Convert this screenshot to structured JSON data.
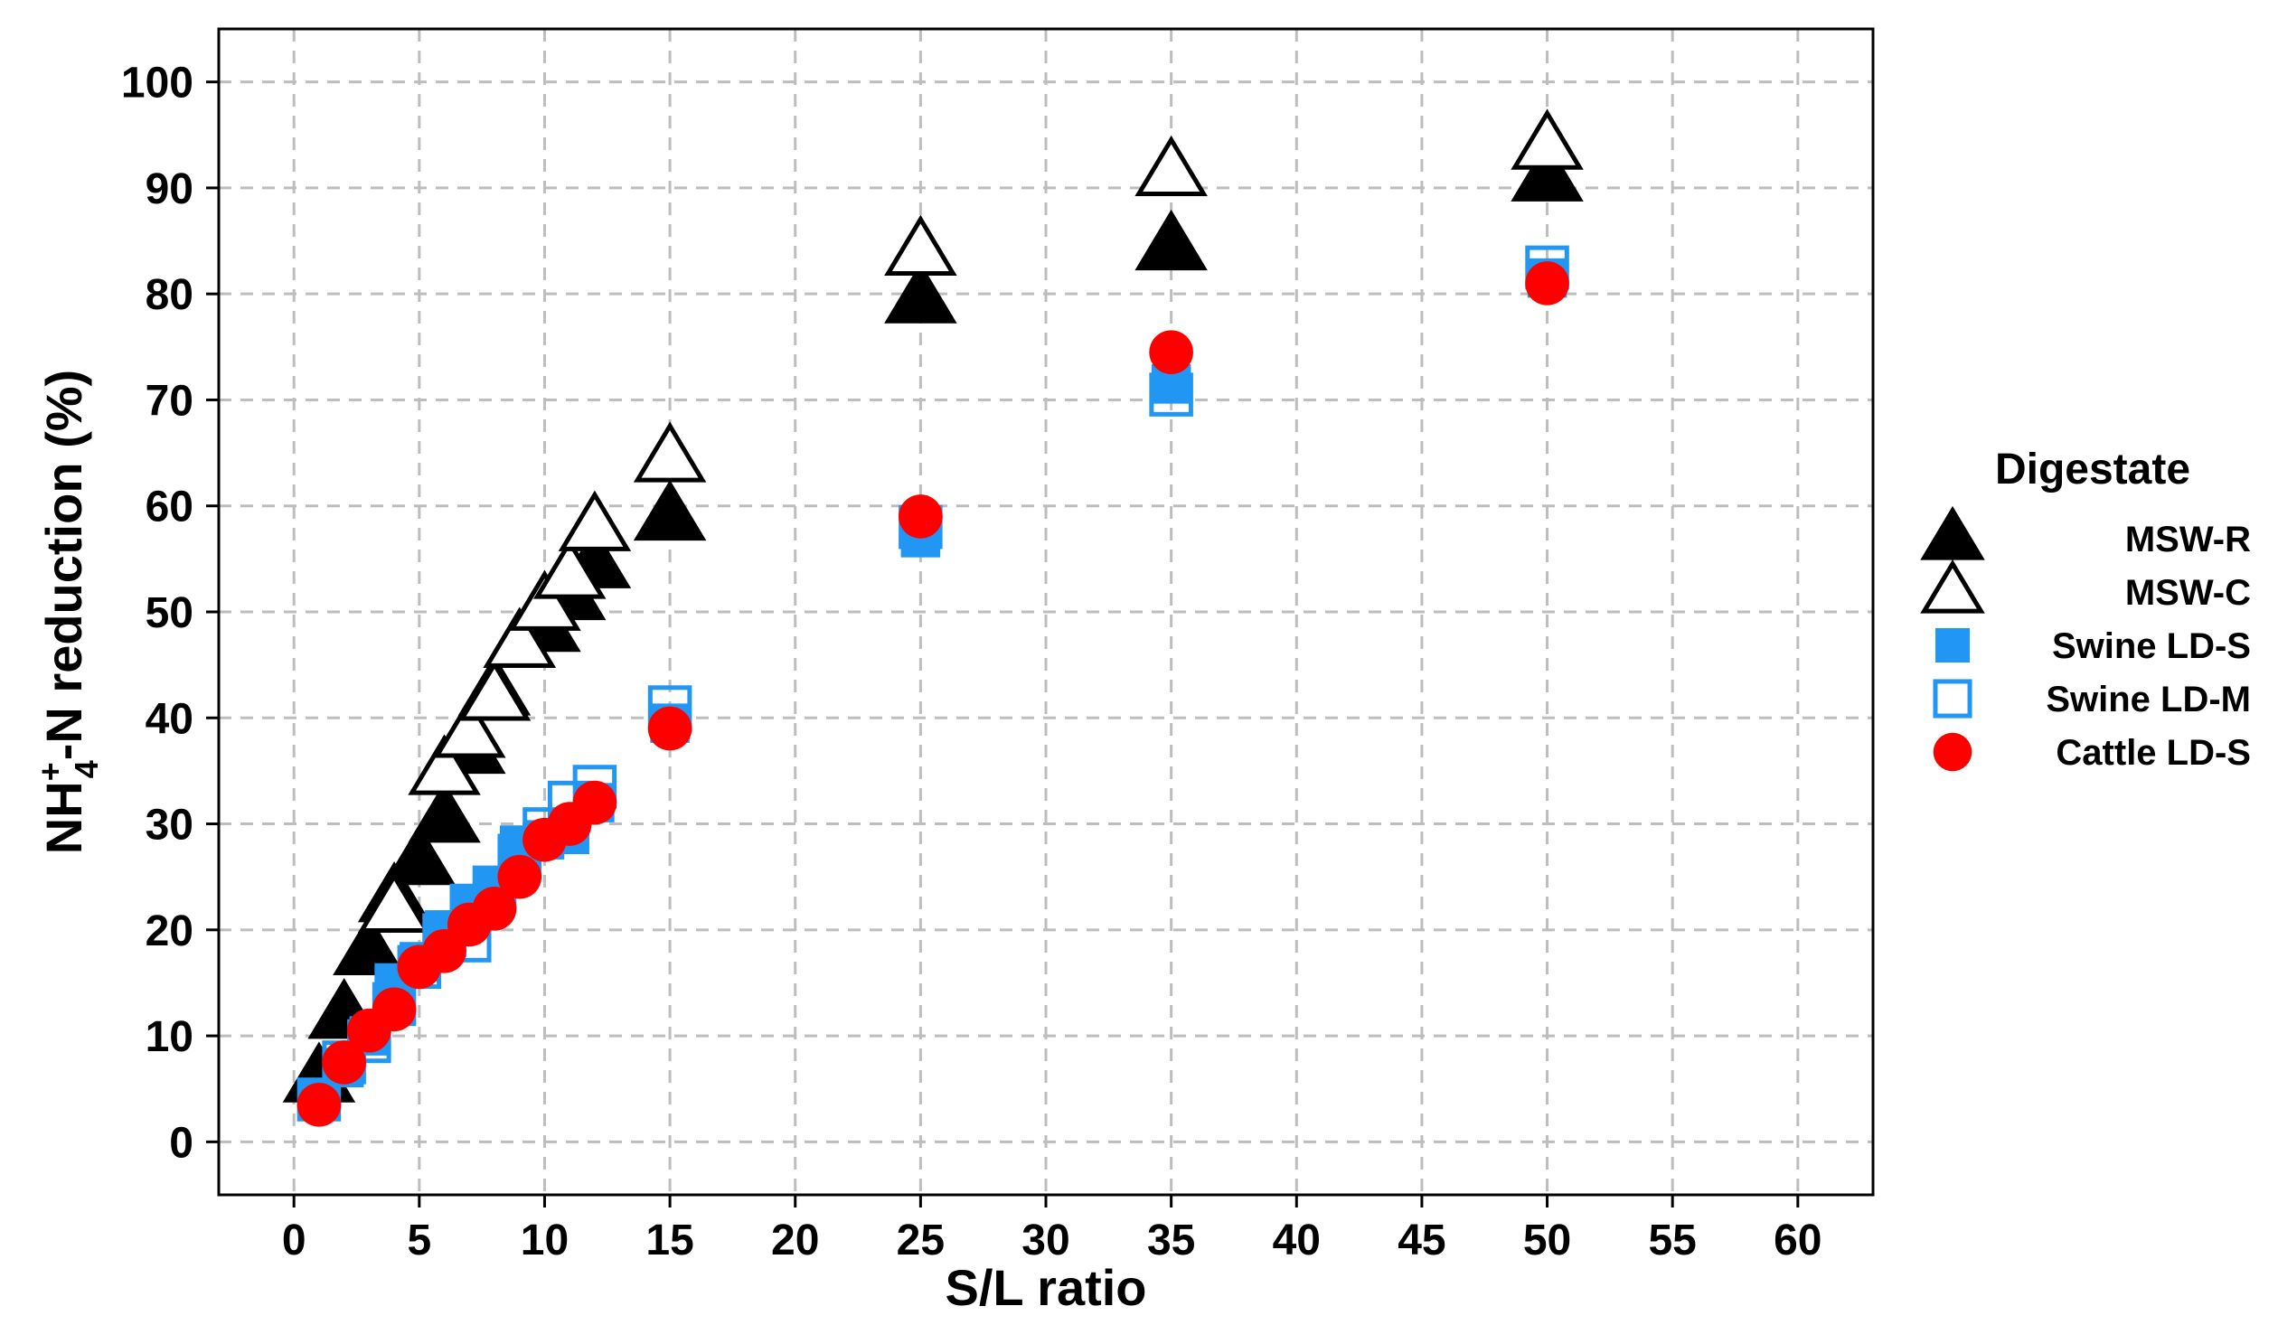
{
  "chart_data": {
    "type": "scatter",
    "xlabel": "S/L ratio",
    "ylabel_parts": {
      "base": "NH",
      "sup": "+",
      "sub": "4",
      "rest": "-N reduction (%)"
    },
    "xlim": [
      -3,
      63
    ],
    "ylim": [
      -5,
      105
    ],
    "x_ticks": [
      0,
      5,
      10,
      15,
      20,
      25,
      30,
      35,
      40,
      45,
      50,
      55,
      60
    ],
    "y_ticks": [
      0,
      10,
      20,
      30,
      40,
      50,
      60,
      70,
      80,
      90,
      100
    ],
    "grid": true,
    "legend": {
      "title": "Digestate",
      "position": "right"
    },
    "series": [
      {
        "name": "MSW-R",
        "marker": "triangle-filled",
        "color": "#000000",
        "points": [
          [
            1,
            6
          ],
          [
            2,
            12
          ],
          [
            3,
            18
          ],
          [
            4,
            23
          ],
          [
            5,
            26.5
          ],
          [
            6,
            30.5
          ],
          [
            7,
            37
          ],
          [
            8,
            42.5
          ],
          [
            9,
            47
          ],
          [
            10,
            48.5
          ],
          [
            11,
            51.5
          ],
          [
            12,
            54.5
          ],
          [
            15,
            59
          ],
          [
            25,
            79.5
          ],
          [
            35,
            84.5
          ],
          [
            50,
            91
          ]
        ]
      },
      {
        "name": "MSW-C",
        "marker": "triangle-open",
        "color": "#000000",
        "points": [
          [
            4,
            22
          ],
          [
            6,
            35
          ],
          [
            7,
            38.5
          ],
          [
            8,
            42
          ],
          [
            9,
            47
          ],
          [
            10,
            50.5
          ],
          [
            11,
            53.5
          ],
          [
            12,
            58
          ],
          [
            15,
            64.5
          ],
          [
            25,
            84
          ],
          [
            35,
            91.5
          ],
          [
            50,
            94
          ]
        ]
      },
      {
        "name": "Swine LD-S",
        "marker": "square-filled",
        "color": "#2196F3",
        "points": [
          [
            1,
            4
          ],
          [
            2,
            7
          ],
          [
            3,
            10
          ],
          [
            4,
            15
          ],
          [
            5,
            17
          ],
          [
            6,
            20
          ],
          [
            7,
            22.5
          ],
          [
            8,
            24
          ],
          [
            9,
            28
          ],
          [
            10,
            28.5
          ],
          [
            11,
            29
          ],
          [
            12,
            32
          ],
          [
            15,
            39.5
          ],
          [
            25,
            57
          ],
          [
            35,
            71.5
          ],
          [
            50,
            81.5
          ]
        ]
      },
      {
        "name": "Swine LD-M",
        "marker": "square-open",
        "color": "#2196F3",
        "points": [
          [
            1,
            4
          ],
          [
            2,
            7.5
          ],
          [
            3,
            9.5
          ],
          [
            4,
            13
          ],
          [
            5,
            16.5
          ],
          [
            6,
            19.5
          ],
          [
            7,
            19
          ],
          [
            8,
            24
          ],
          [
            9,
            27
          ],
          [
            10,
            29.5
          ],
          [
            11,
            32
          ],
          [
            12,
            33.5
          ],
          [
            15,
            41
          ],
          [
            25,
            58
          ],
          [
            35,
            70.5
          ],
          [
            50,
            82.5
          ]
        ]
      },
      {
        "name": "Cattle LD-S",
        "marker": "circle-filled",
        "color": "#FF0000",
        "points": [
          [
            1,
            3.5
          ],
          [
            2,
            7.5
          ],
          [
            3,
            10.5
          ],
          [
            4,
            12.5
          ],
          [
            5,
            16.5
          ],
          [
            6,
            18
          ],
          [
            7,
            20.5
          ],
          [
            8,
            22
          ],
          [
            9,
            25
          ],
          [
            10,
            28.5
          ],
          [
            11,
            30
          ],
          [
            12,
            32
          ],
          [
            15,
            39
          ],
          [
            25,
            59
          ],
          [
            35,
            74.5
          ],
          [
            50,
            81
          ]
        ]
      }
    ]
  }
}
